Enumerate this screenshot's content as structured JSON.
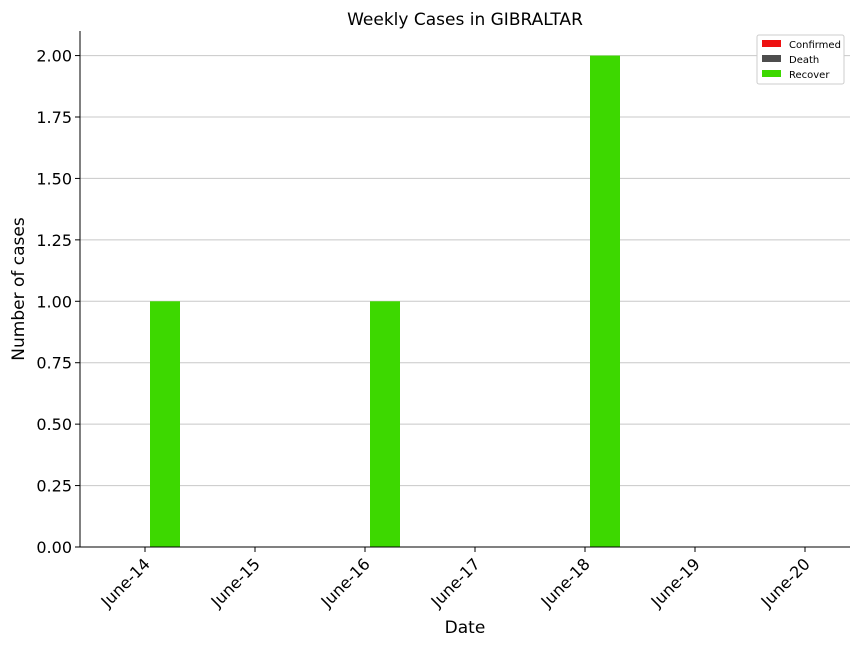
{
  "chart_data": {
    "type": "bar",
    "title": "Weekly Cases in GIBRALTAR",
    "xlabel": "Date",
    "ylabel": "Number of cases",
    "categories": [
      "June-14",
      "June-15",
      "June-16",
      "June-17",
      "June-18",
      "June-19",
      "June-20"
    ],
    "series": [
      {
        "name": "Confirmed",
        "color": "#ee1111",
        "values": [
          0,
          0,
          0,
          0,
          0,
          0,
          0
        ]
      },
      {
        "name": "Death",
        "color": "#4d4d4d",
        "values": [
          0,
          0,
          0,
          0,
          0,
          0,
          0
        ]
      },
      {
        "name": "Recover",
        "color": "#3dd800",
        "values": [
          1,
          0,
          1,
          0,
          2,
          0,
          0
        ]
      }
    ],
    "ylim": [
      0,
      2.1
    ],
    "yticks": [
      "0.00",
      "0.25",
      "0.50",
      "0.75",
      "1.00",
      "1.25",
      "1.50",
      "1.75",
      "2.00"
    ],
    "grid": "horizontal",
    "legend_position": "top-right"
  }
}
